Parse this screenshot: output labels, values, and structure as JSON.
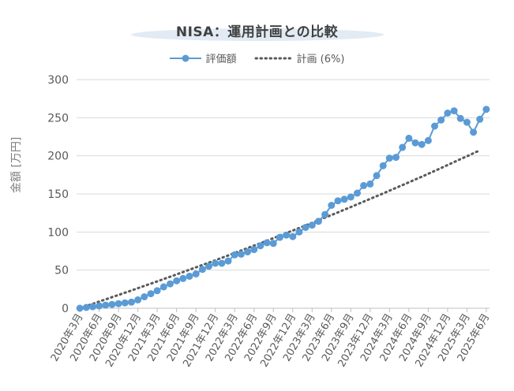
{
  "chart_data": {
    "type": "line",
    "title": "NISA：運用計画との比較",
    "ylabel": "金額 [万円]",
    "xlabel": "",
    "ylim": [
      0,
      300
    ],
    "yticks": [
      0,
      50,
      100,
      150,
      200,
      250,
      300
    ],
    "grid": true,
    "legend_position": "top-center",
    "tick_labels": [
      "2020年3月",
      "2020年6月",
      "2020年9月",
      "2020年12月",
      "2021年3月",
      "2021年6月",
      "2021年9月",
      "2021年12月",
      "2022年3月",
      "2022年6月",
      "2022年9月",
      "2022年12月",
      "2023年3月",
      "2023年6月",
      "2023年9月",
      "2023年12月",
      "2024年3月",
      "2024年6月",
      "2024年9月",
      "2024年12月",
      "2025年3月",
      "2025年6月"
    ],
    "series": [
      {
        "name": "評価額",
        "style": "solid-line-with-markers",
        "color": "#5b9bd5",
        "values": [
          0,
          1,
          2,
          3,
          4,
          5,
          6,
          7,
          8,
          11,
          15,
          19,
          23,
          28,
          32,
          36,
          39,
          42,
          45,
          51,
          55,
          59,
          59,
          62,
          70,
          71,
          74,
          77,
          82,
          86,
          85,
          93,
          96,
          94,
          100,
          106,
          109,
          114,
          123,
          135,
          141,
          143,
          146,
          151,
          161,
          163,
          174,
          187,
          197,
          198,
          211,
          223,
          217,
          215,
          220,
          239,
          247,
          256,
          259,
          249,
          244,
          231,
          248,
          261
        ]
      },
      {
        "name": "計画 (6%)",
        "style": "dotted",
        "color": "#595959",
        "values": [
          0,
          2.5,
          5.0,
          7.6,
          10.1,
          12.6,
          15.2,
          17.7,
          20.3,
          22.8,
          25.4,
          28.0,
          30.6,
          33.2,
          35.8,
          38.5,
          41.1,
          43.8,
          46.4,
          49.1,
          51.8,
          54.5,
          57.2,
          59.9,
          62.6,
          65.4,
          68.1,
          70.9,
          73.7,
          76.5,
          79.3,
          82.1,
          84.9,
          87.7,
          90.6,
          93.5,
          96.4,
          99.3,
          102.2,
          105.1,
          108.0,
          111.0,
          113.9,
          116.9,
          119.9,
          122.9,
          125.9,
          129.0,
          132.0,
          135.1,
          138.2,
          141.3,
          144.4,
          147.5,
          150.6,
          153.8,
          157.0,
          160.1,
          163.3,
          166.6,
          169.8,
          173.0,
          176.3,
          179.6,
          182.9,
          186.2,
          189.6,
          192.9,
          196.3,
          199.7,
          203.1,
          206.5
        ]
      }
    ]
  }
}
